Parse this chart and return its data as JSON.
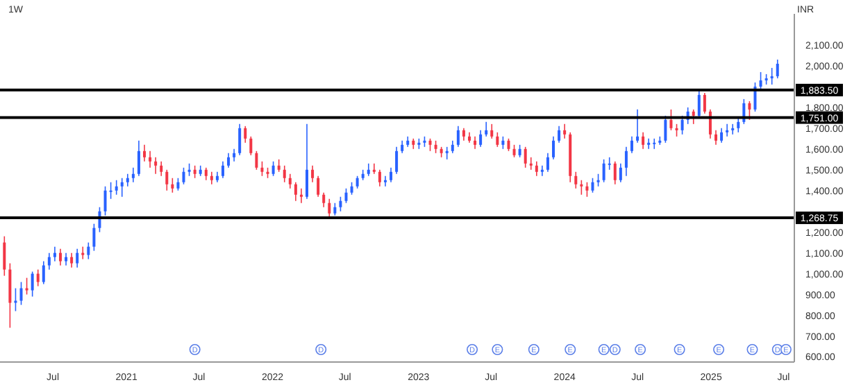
{
  "chart_data": {
    "type": "candlestick",
    "title": "1W",
    "ylabel": "INR",
    "x": [
      "2020-03-02",
      "2020-03-16",
      "2020-03-30",
      "2020-04-13",
      "2020-04-27",
      "2020-05-11",
      "2020-05-25",
      "2020-06-08",
      "2020-06-22",
      "2020-07-06",
      "2020-07-20",
      "2020-08-03",
      "2020-08-17",
      "2020-08-31",
      "2020-09-14",
      "2020-09-28",
      "2020-10-12",
      "2020-10-26",
      "2020-11-09",
      "2020-11-23",
      "2020-12-07",
      "2020-12-21",
      "2021-01-04",
      "2021-01-18",
      "2021-02-01",
      "2021-02-15",
      "2021-03-01",
      "2021-03-15",
      "2021-03-29",
      "2021-04-12",
      "2021-04-26",
      "2021-05-10",
      "2021-05-24",
      "2021-06-07",
      "2021-06-21",
      "2021-07-05",
      "2021-07-19",
      "2021-08-02",
      "2021-08-16",
      "2021-08-30",
      "2021-09-13",
      "2021-09-27",
      "2021-10-11",
      "2021-10-25",
      "2021-11-08",
      "2021-11-22",
      "2021-12-06",
      "2021-12-20",
      "2022-01-03",
      "2022-01-17",
      "2022-01-31",
      "2022-02-14",
      "2022-02-28",
      "2022-03-14",
      "2022-03-28",
      "2022-04-11",
      "2022-04-25",
      "2022-05-09",
      "2022-05-23",
      "2022-06-06",
      "2022-06-20",
      "2022-07-04",
      "2022-07-18",
      "2022-08-01",
      "2022-08-15",
      "2022-08-29",
      "2022-09-12",
      "2022-09-26",
      "2022-10-10",
      "2022-10-24",
      "2022-11-07",
      "2022-11-21",
      "2022-12-05",
      "2022-12-19",
      "2023-01-02",
      "2023-01-16",
      "2023-01-30",
      "2023-02-13",
      "2023-02-27",
      "2023-03-13",
      "2023-03-27",
      "2023-04-10",
      "2023-04-24",
      "2023-05-08",
      "2023-05-22",
      "2023-06-05",
      "2023-06-19",
      "2023-07-03",
      "2023-07-17",
      "2023-07-31",
      "2023-08-14",
      "2023-08-28",
      "2023-09-11",
      "2023-09-25",
      "2023-10-09",
      "2023-10-23",
      "2023-11-06",
      "2023-11-20",
      "2023-12-04",
      "2023-12-18",
      "2024-01-01",
      "2024-01-15",
      "2024-01-29",
      "2024-02-12",
      "2024-02-26",
      "2024-03-11",
      "2024-03-25",
      "2024-04-08",
      "2024-04-22",
      "2024-05-06",
      "2024-05-20",
      "2024-06-03",
      "2024-06-17",
      "2024-07-01",
      "2024-07-15",
      "2024-07-29",
      "2024-08-12",
      "2024-08-26",
      "2024-09-09",
      "2024-09-23",
      "2024-10-07",
      "2024-10-21",
      "2024-11-04",
      "2024-11-18",
      "2024-12-02",
      "2024-12-16",
      "2024-12-30",
      "2025-01-13",
      "2025-01-27",
      "2025-02-10",
      "2025-02-24",
      "2025-03-10",
      "2025-03-24",
      "2025-04-07",
      "2025-04-21",
      "2025-05-05",
      "2025-05-19",
      "2025-06-02",
      "2025-06-16"
    ],
    "ohlc": [
      [
        1150,
        1180,
        990,
        1020
      ],
      [
        1020,
        1050,
        740,
        860
      ],
      [
        860,
        930,
        820,
        870
      ],
      [
        870,
        960,
        850,
        930
      ],
      [
        930,
        980,
        900,
        920
      ],
      [
        920,
        1010,
        890,
        1000
      ],
      [
        1000,
        1020,
        940,
        960
      ],
      [
        960,
        1060,
        950,
        1040
      ],
      [
        1040,
        1100,
        1020,
        1080
      ],
      [
        1080,
        1130,
        1060,
        1100
      ],
      [
        1100,
        1120,
        1040,
        1060
      ],
      [
        1060,
        1100,
        1040,
        1080
      ],
      [
        1080,
        1100,
        1030,
        1050
      ],
      [
        1050,
        1120,
        1030,
        1100
      ],
      [
        1100,
        1130,
        1070,
        1090
      ],
      [
        1090,
        1150,
        1070,
        1130
      ],
      [
        1130,
        1240,
        1110,
        1220
      ],
      [
        1220,
        1320,
        1200,
        1300
      ],
      [
        1300,
        1420,
        1280,
        1400
      ],
      [
        1400,
        1440,
        1360,
        1400
      ],
      [
        1400,
        1450,
        1380,
        1420
      ],
      [
        1420,
        1460,
        1370,
        1440
      ],
      [
        1440,
        1480,
        1420,
        1460
      ],
      [
        1460,
        1510,
        1440,
        1480
      ],
      [
        1480,
        1640,
        1470,
        1590
      ],
      [
        1590,
        1620,
        1540,
        1560
      ],
      [
        1560,
        1590,
        1510,
        1540
      ],
      [
        1540,
        1560,
        1480,
        1520
      ],
      [
        1520,
        1540,
        1470,
        1490
      ],
      [
        1490,
        1500,
        1400,
        1430
      ],
      [
        1430,
        1460,
        1390,
        1410
      ],
      [
        1410,
        1460,
        1400,
        1440
      ],
      [
        1440,
        1510,
        1430,
        1490
      ],
      [
        1490,
        1530,
        1470,
        1500
      ],
      [
        1500,
        1520,
        1460,
        1480
      ],
      [
        1480,
        1520,
        1470,
        1500
      ],
      [
        1500,
        1510,
        1450,
        1470
      ],
      [
        1470,
        1490,
        1430,
        1450
      ],
      [
        1450,
        1490,
        1440,
        1470
      ],
      [
        1470,
        1540,
        1460,
        1520
      ],
      [
        1520,
        1580,
        1510,
        1560
      ],
      [
        1560,
        1600,
        1540,
        1580
      ],
      [
        1580,
        1720,
        1570,
        1700
      ],
      [
        1700,
        1710,
        1630,
        1650
      ],
      [
        1650,
        1660,
        1570,
        1580
      ],
      [
        1580,
        1590,
        1500,
        1510
      ],
      [
        1510,
        1540,
        1470,
        1490
      ],
      [
        1490,
        1510,
        1460,
        1480
      ],
      [
        1480,
        1540,
        1470,
        1520
      ],
      [
        1520,
        1550,
        1490,
        1500
      ],
      [
        1500,
        1520,
        1440,
        1460
      ],
      [
        1460,
        1480,
        1410,
        1430
      ],
      [
        1430,
        1440,
        1350,
        1380
      ],
      [
        1380,
        1410,
        1340,
        1370
      ],
      [
        1370,
        1720,
        1360,
        1500
      ],
      [
        1500,
        1520,
        1440,
        1460
      ],
      [
        1460,
        1470,
        1370,
        1380
      ],
      [
        1380,
        1390,
        1320,
        1340
      ],
      [
        1340,
        1360,
        1270,
        1290
      ],
      [
        1290,
        1340,
        1280,
        1320
      ],
      [
        1320,
        1370,
        1300,
        1350
      ],
      [
        1350,
        1410,
        1340,
        1390
      ],
      [
        1390,
        1440,
        1380,
        1420
      ],
      [
        1420,
        1470,
        1410,
        1460
      ],
      [
        1460,
        1500,
        1450,
        1480
      ],
      [
        1480,
        1530,
        1470,
        1500
      ],
      [
        1500,
        1530,
        1480,
        1490
      ],
      [
        1490,
        1500,
        1420,
        1440
      ],
      [
        1440,
        1470,
        1420,
        1450
      ],
      [
        1450,
        1510,
        1440,
        1490
      ],
      [
        1490,
        1610,
        1480,
        1590
      ],
      [
        1590,
        1640,
        1580,
        1620
      ],
      [
        1620,
        1660,
        1610,
        1640
      ],
      [
        1640,
        1650,
        1600,
        1620
      ],
      [
        1620,
        1650,
        1600,
        1630
      ],
      [
        1630,
        1660,
        1610,
        1640
      ],
      [
        1640,
        1650,
        1590,
        1620
      ],
      [
        1620,
        1640,
        1580,
        1600
      ],
      [
        1600,
        1610,
        1560,
        1580
      ],
      [
        1580,
        1610,
        1550,
        1590
      ],
      [
        1590,
        1640,
        1580,
        1620
      ],
      [
        1620,
        1710,
        1610,
        1690
      ],
      [
        1690,
        1700,
        1640,
        1660
      ],
      [
        1660,
        1680,
        1630,
        1640
      ],
      [
        1640,
        1660,
        1600,
        1620
      ],
      [
        1620,
        1690,
        1610,
        1670
      ],
      [
        1670,
        1730,
        1660,
        1690
      ],
      [
        1690,
        1720,
        1650,
        1660
      ],
      [
        1660,
        1680,
        1610,
        1620
      ],
      [
        1620,
        1660,
        1600,
        1640
      ],
      [
        1640,
        1650,
        1590,
        1600
      ],
      [
        1600,
        1620,
        1560,
        1570
      ],
      [
        1570,
        1620,
        1560,
        1600
      ],
      [
        1600,
        1610,
        1510,
        1530
      ],
      [
        1530,
        1560,
        1500,
        1520
      ],
      [
        1520,
        1540,
        1470,
        1490
      ],
      [
        1490,
        1520,
        1470,
        1500
      ],
      [
        1500,
        1580,
        1490,
        1560
      ],
      [
        1560,
        1660,
        1550,
        1640
      ],
      [
        1640,
        1710,
        1630,
        1690
      ],
      [
        1690,
        1720,
        1650,
        1670
      ],
      [
        1670,
        1680,
        1440,
        1470
      ],
      [
        1470,
        1490,
        1410,
        1430
      ],
      [
        1430,
        1450,
        1380,
        1420
      ],
      [
        1420,
        1440,
        1370,
        1400
      ],
      [
        1400,
        1460,
        1390,
        1440
      ],
      [
        1440,
        1480,
        1420,
        1450
      ],
      [
        1450,
        1550,
        1440,
        1530
      ],
      [
        1530,
        1560,
        1500,
        1530
      ],
      [
        1530,
        1540,
        1430,
        1450
      ],
      [
        1450,
        1530,
        1440,
        1510
      ],
      [
        1510,
        1610,
        1470,
        1590
      ],
      [
        1590,
        1660,
        1580,
        1640
      ],
      [
        1640,
        1790,
        1630,
        1660
      ],
      [
        1660,
        1680,
        1600,
        1620
      ],
      [
        1620,
        1650,
        1600,
        1630
      ],
      [
        1630,
        1650,
        1600,
        1630
      ],
      [
        1630,
        1660,
        1620,
        1640
      ],
      [
        1640,
        1760,
        1630,
        1740
      ],
      [
        1740,
        1790,
        1690,
        1700
      ],
      [
        1700,
        1720,
        1660,
        1690
      ],
      [
        1690,
        1760,
        1670,
        1740
      ],
      [
        1740,
        1800,
        1720,
        1780
      ],
      [
        1780,
        1790,
        1720,
        1760
      ],
      [
        1760,
        1880,
        1750,
        1860
      ],
      [
        1860,
        1870,
        1770,
        1780
      ],
      [
        1780,
        1790,
        1650,
        1670
      ],
      [
        1670,
        1690,
        1620,
        1640
      ],
      [
        1640,
        1700,
        1630,
        1680
      ],
      [
        1680,
        1720,
        1660,
        1690
      ],
      [
        1690,
        1720,
        1670,
        1700
      ],
      [
        1700,
        1750,
        1680,
        1730
      ],
      [
        1730,
        1840,
        1720,
        1820
      ],
      [
        1820,
        1830,
        1740,
        1790
      ],
      [
        1790,
        1920,
        1780,
        1900
      ],
      [
        1900,
        1970,
        1890,
        1930
      ],
      [
        1930,
        1960,
        1910,
        1940
      ],
      [
        1940,
        1990,
        1910,
        1950
      ],
      [
        1950,
        2030,
        1940,
        2010
      ]
    ],
    "xlim": [
      "2020-02-20",
      "2025-07-28"
    ],
    "xticks": [
      {
        "value": "2020-07-01",
        "label": "Jul"
      },
      {
        "value": "2021-01-01",
        "label": "2021"
      },
      {
        "value": "2021-07-01",
        "label": "Jul"
      },
      {
        "value": "2022-01-01",
        "label": "2022"
      },
      {
        "value": "2022-07-01",
        "label": "Jul"
      },
      {
        "value": "2023-01-01",
        "label": "2023"
      },
      {
        "value": "2023-07-01",
        "label": "Jul"
      },
      {
        "value": "2024-01-01",
        "label": "2024"
      },
      {
        "value": "2024-07-01",
        "label": "Jul"
      },
      {
        "value": "2025-01-01",
        "label": "2025"
      },
      {
        "value": "2025-07-01",
        "label": "Jul"
      }
    ],
    "ylim": [
      575,
      2250
    ],
    "yticks": [
      {
        "value": 600,
        "label": "600.00"
      },
      {
        "value": 700,
        "label": "700.00"
      },
      {
        "value": 800,
        "label": "800.00"
      },
      {
        "value": 900,
        "label": "900.00"
      },
      {
        "value": 1000,
        "label": "1,000.00"
      },
      {
        "value": 1100,
        "label": "1,100.00"
      },
      {
        "value": 1200,
        "label": "1,200.00"
      },
      {
        "value": 1400,
        "label": "1,400.00"
      },
      {
        "value": 1500,
        "label": "1,500.00"
      },
      {
        "value": 1600,
        "label": "1,600.00"
      },
      {
        "value": 1700,
        "label": "1,700.00"
      },
      {
        "value": 1800,
        "label": "1,800.00"
      },
      {
        "value": 2000,
        "label": "2,000.00"
      },
      {
        "value": 2100,
        "label": "2,100.00"
      }
    ],
    "ref_lines": [
      {
        "axis": "y",
        "value": 1883.5,
        "label": "1,883.50",
        "color": "#000000"
      },
      {
        "axis": "y",
        "value": 1751,
        "label": "1,751.00",
        "color": "#000000"
      },
      {
        "axis": "y",
        "value": 1268.75,
        "label": "1,268.75",
        "color": "#000000"
      }
    ],
    "annotations": [
      {
        "text": "D",
        "x": "2021-06-21"
      },
      {
        "text": "D",
        "x": "2022-05-02"
      },
      {
        "text": "D",
        "x": "2023-05-15"
      },
      {
        "text": "E",
        "x": "2023-07-17"
      },
      {
        "text": "E",
        "x": "2023-10-16"
      },
      {
        "text": "E",
        "x": "2024-01-15"
      },
      {
        "text": "E",
        "x": "2024-04-08"
      },
      {
        "text": "D",
        "x": "2024-05-06"
      },
      {
        "text": "E",
        "x": "2024-07-08"
      },
      {
        "text": "E",
        "x": "2024-10-14"
      },
      {
        "text": "E",
        "x": "2025-01-20"
      },
      {
        "text": "E",
        "x": "2025-04-14"
      },
      {
        "text": "D",
        "x": "2025-06-16"
      },
      {
        "text": "E",
        "x": "2025-07-07"
      }
    ]
  }
}
